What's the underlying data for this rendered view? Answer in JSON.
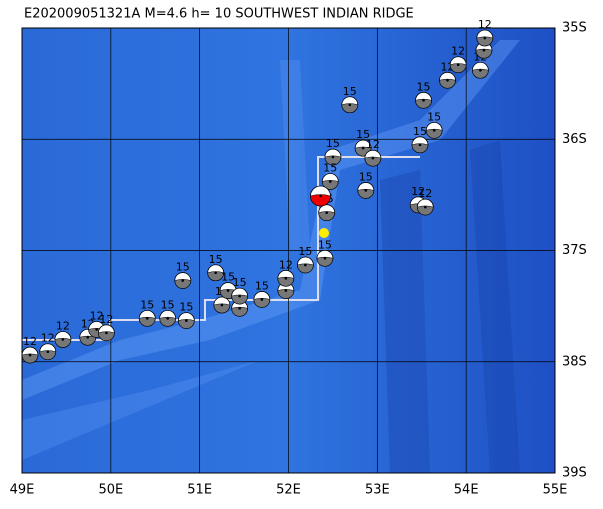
{
  "map": {
    "title": "E202009051321A  M=4.6  h= 10  SOUTHWEST INDIAN RIDGE",
    "lonlim": [
      49,
      55
    ],
    "latlim": [
      -35,
      -39
    ],
    "lonticks": [
      {
        "value": 49,
        "label": "49E"
      },
      {
        "value": 50,
        "label": "50E"
      },
      {
        "value": 51,
        "label": "51E"
      },
      {
        "value": 52,
        "label": "52E"
      },
      {
        "value": 53,
        "label": "53E"
      },
      {
        "value": 54,
        "label": "54E"
      },
      {
        "value": 55,
        "label": "55E"
      }
    ],
    "latticks": [
      {
        "value": -35,
        "label": "35S"
      },
      {
        "value": -36,
        "label": "36S"
      },
      {
        "value": -37,
        "label": "37S"
      },
      {
        "value": -38,
        "label": "38S"
      },
      {
        "value": -39,
        "label": "39S"
      }
    ],
    "main_event": {
      "lon": 52.36,
      "lat": -36.51
    },
    "events": [
      {
        "lon": 49.09,
        "lat": -37.94,
        "label": "12"
      },
      {
        "lon": 49.29,
        "lat": -37.91,
        "label": "12"
      },
      {
        "lon": 49.46,
        "lat": -37.8,
        "label": "12"
      },
      {
        "lon": 49.74,
        "lat": -37.78,
        "label": "12"
      },
      {
        "lon": 49.84,
        "lat": -37.71,
        "label": "12"
      },
      {
        "lon": 49.95,
        "lat": -37.74,
        "label": "12"
      },
      {
        "lon": 50.41,
        "lat": -37.61,
        "label": "15"
      },
      {
        "lon": 50.64,
        "lat": -37.61,
        "label": "15"
      },
      {
        "lon": 50.85,
        "lat": -37.63,
        "label": "15"
      },
      {
        "lon": 50.81,
        "lat": -37.27,
        "label": "15"
      },
      {
        "lon": 51.18,
        "lat": -37.2,
        "label": "15"
      },
      {
        "lon": 51.25,
        "lat": -37.49,
        "label": "15"
      },
      {
        "lon": 51.45,
        "lat": -37.52,
        "label": "15"
      },
      {
        "lon": 51.32,
        "lat": -37.36,
        "label": "15"
      },
      {
        "lon": 51.45,
        "lat": -37.41,
        "label": "15"
      },
      {
        "lon": 51.7,
        "lat": -37.44,
        "label": "15"
      },
      {
        "lon": 51.97,
        "lat": -37.36,
        "label": "15"
      },
      {
        "lon": 51.97,
        "lat": -37.25,
        "label": "12"
      },
      {
        "lon": 52.19,
        "lat": -37.13,
        "label": "15"
      },
      {
        "lon": 52.41,
        "lat": -37.07,
        "label": "15"
      },
      {
        "lon": 52.69,
        "lat": -35.69,
        "label": "15"
      },
      {
        "lon": 52.5,
        "lat": -36.16,
        "label": "15"
      },
      {
        "lon": 52.84,
        "lat": -36.08,
        "label": "15"
      },
      {
        "lon": 52.95,
        "lat": -36.17,
        "label": "12"
      },
      {
        "lon": 52.87,
        "lat": -36.46,
        "label": "15"
      },
      {
        "lon": 53.46,
        "lat": -36.59,
        "label": "12"
      },
      {
        "lon": 53.54,
        "lat": -36.61,
        "label": "12"
      },
      {
        "lon": 53.48,
        "lat": -36.05,
        "label": "15"
      },
      {
        "lon": 53.64,
        "lat": -35.92,
        "label": "15"
      },
      {
        "lon": 53.52,
        "lat": -35.65,
        "label": "15"
      },
      {
        "lon": 53.79,
        "lat": -35.47,
        "label": "12"
      },
      {
        "lon": 53.91,
        "lat": -35.33,
        "label": "12"
      },
      {
        "lon": 54.16,
        "lat": -35.38,
        "label": "12"
      },
      {
        "lon": 54.2,
        "lat": -35.2,
        "label": "12"
      },
      {
        "lon": 54.21,
        "lat": -35.09,
        "label": "12"
      },
      {
        "lon": 52.43,
        "lat": -36.66,
        "label": "15"
      },
      {
        "lon": 52.47,
        "lat": -36.38,
        "label": "15"
      }
    ]
  }
}
